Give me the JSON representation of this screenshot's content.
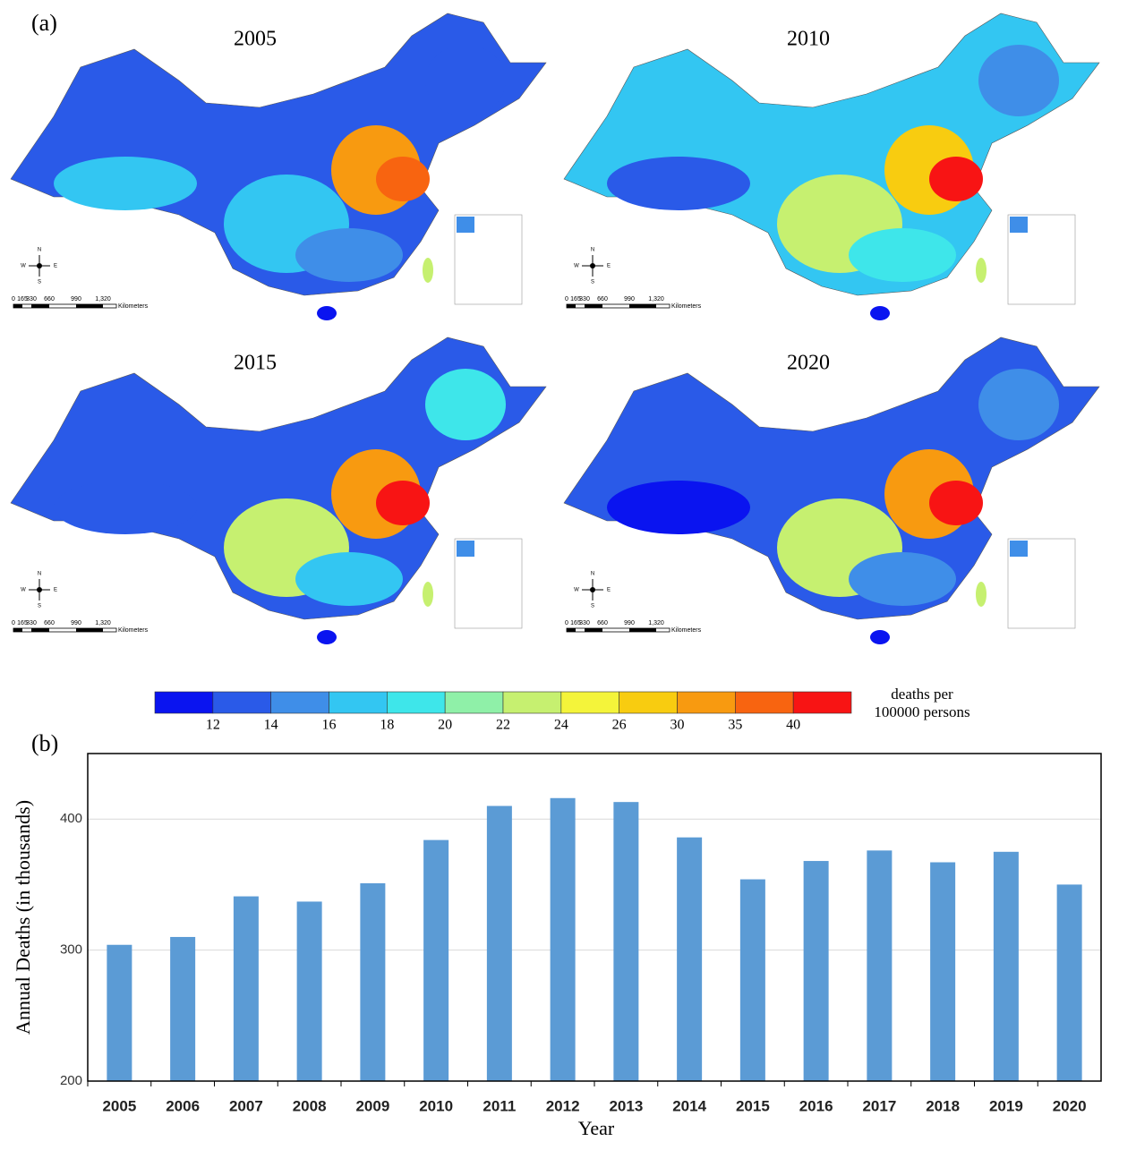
{
  "panel_a": {
    "label": "(a)",
    "maps": [
      {
        "title": "2005"
      },
      {
        "title": "2010"
      },
      {
        "title": "2015"
      },
      {
        "title": "2020"
      }
    ],
    "scale_labels": [
      "0",
      "165",
      "330",
      "660",
      "990",
      "1,320"
    ],
    "scale_unit": "Kilometers",
    "compass": [
      "N",
      "S",
      "W",
      "E"
    ],
    "colorbar": {
      "colors": [
        "#0a14f0",
        "#2a5ae8",
        "#3f8ee8",
        "#33c6f2",
        "#3ee6ea",
        "#8ff0a8",
        "#c6f070",
        "#f4f43a",
        "#f8cc10",
        "#f89a10",
        "#f86410",
        "#f81414"
      ],
      "ticks": [
        12,
        14,
        16,
        18,
        20,
        22,
        24,
        26,
        30,
        35,
        40
      ],
      "label_lines": [
        "deaths per",
        "100000 persons"
      ]
    }
  },
  "chart_data": {
    "type": "bar",
    "panel_label": "(b)",
    "x_label": "Year",
    "y_label": "Annual Deaths (in thousands)",
    "categories": [
      "2005",
      "2006",
      "2007",
      "2008",
      "2009",
      "2010",
      "2011",
      "2012",
      "2013",
      "2014",
      "2015",
      "2016",
      "2017",
      "2018",
      "2019",
      "2020"
    ],
    "values": [
      304,
      310,
      341,
      337,
      351,
      384,
      410,
      416,
      413,
      386,
      354,
      368,
      376,
      367,
      375,
      350
    ],
    "color": "#5b9bd5",
    "ylim": [
      200,
      450
    ],
    "yticks": [
      200,
      300,
      400
    ],
    "grid": true
  }
}
